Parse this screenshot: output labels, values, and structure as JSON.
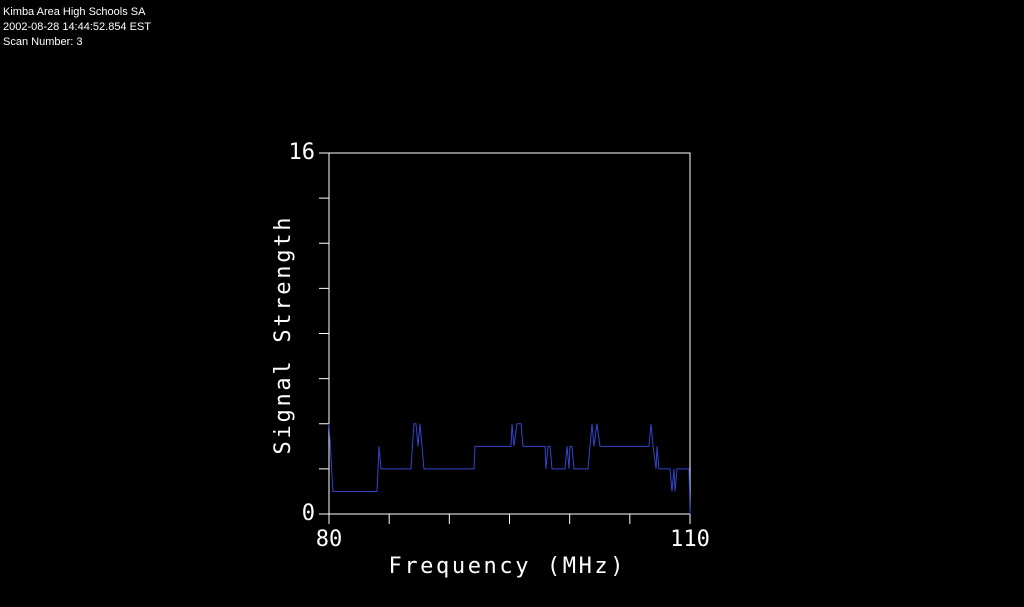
{
  "header": {
    "site": "Kimba Area High Schools SA",
    "timestamp": "2002-08-28 14:44:52.854 EST",
    "scan": "Scan Number: 3"
  },
  "chart_data": {
    "type": "line",
    "x_label": "Frequency (MHz)",
    "y_label": "Signal Strength",
    "xlim": [
      80,
      110
    ],
    "ylim": [
      0,
      16
    ],
    "xticks": [
      80,
      110
    ],
    "yticks": [
      0,
      16
    ],
    "x_minor_ticks": [
      85,
      90,
      95,
      100,
      105
    ],
    "y_minor_ticks": [
      2,
      4,
      6,
      8,
      10,
      12,
      14
    ],
    "series": [
      {
        "color": "#3344cc",
        "x": [
          80.0,
          80.33,
          83.99,
          84.16,
          84.32,
          86.81,
          87.06,
          87.23,
          87.4,
          87.56,
          87.89,
          92.05,
          92.13,
          95.12,
          95.21,
          95.37,
          95.62,
          95.96,
          96.12,
          97.95,
          98.03,
          98.2,
          98.37,
          98.53,
          99.61,
          99.78,
          99.95,
          100.03,
          100.19,
          100.36,
          101.52,
          101.69,
          101.86,
          102.02,
          102.27,
          102.52,
          106.59,
          106.76,
          106.93,
          107.18,
          107.26,
          107.42,
          108.34,
          108.5,
          108.67,
          108.75,
          108.92,
          109.92,
          110.0
        ],
        "values": [
          4,
          1,
          1,
          3,
          2,
          2,
          4,
          4,
          3,
          4,
          2,
          2,
          3,
          3,
          4,
          3,
          4,
          4,
          3,
          3,
          2,
          3,
          3,
          2,
          2,
          3,
          2,
          3,
          3,
          2,
          2,
          3,
          4,
          3,
          4,
          3,
          3,
          4,
          3,
          2,
          3,
          2,
          2,
          1,
          2,
          1,
          2,
          2,
          0
        ]
      }
    ]
  }
}
